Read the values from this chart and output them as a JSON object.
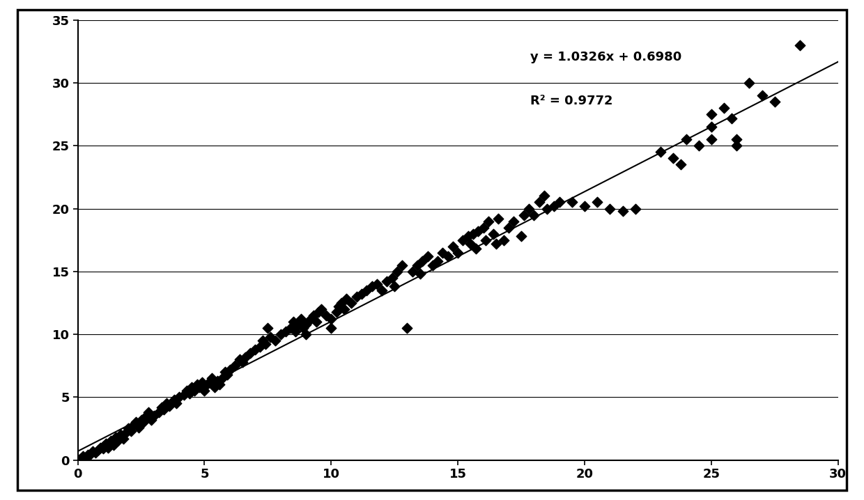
{
  "equation": "y = 1.0326x + 0.6980",
  "r_squared": "R² = 0.9772",
  "slope": 1.0326,
  "intercept": 0.698,
  "xlim": [
    0,
    30
  ],
  "ylim": [
    0,
    35
  ],
  "xticks": [
    0,
    5,
    10,
    15,
    20,
    25,
    30
  ],
  "yticks": [
    0,
    5,
    10,
    15,
    20,
    25,
    30,
    35
  ],
  "marker_color": "black",
  "line_color": "black",
  "background_color": "white",
  "annotation_fontsize": 13,
  "tick_fontsize": 13,
  "scatter_points": [
    [
      0.05,
      0.0
    ],
    [
      0.1,
      0.1
    ],
    [
      0.2,
      0.3
    ],
    [
      0.3,
      0.2
    ],
    [
      0.4,
      0.4
    ],
    [
      0.5,
      0.5
    ],
    [
      0.6,
      0.7
    ],
    [
      0.7,
      0.6
    ],
    [
      0.8,
      0.8
    ],
    [
      0.9,
      1.0
    ],
    [
      1.0,
      0.9
    ],
    [
      1.0,
      1.1
    ],
    [
      1.1,
      1.3
    ],
    [
      1.2,
      1.0
    ],
    [
      1.3,
      1.5
    ],
    [
      1.4,
      1.2
    ],
    [
      1.5,
      1.8
    ],
    [
      1.6,
      1.6
    ],
    [
      1.7,
      2.0
    ],
    [
      1.8,
      1.7
    ],
    [
      1.9,
      2.2
    ],
    [
      2.0,
      2.5
    ],
    [
      2.1,
      2.3
    ],
    [
      2.2,
      2.8
    ],
    [
      2.3,
      3.0
    ],
    [
      2.4,
      2.6
    ],
    [
      2.5,
      3.2
    ],
    [
      2.6,
      3.0
    ],
    [
      2.7,
      3.5
    ],
    [
      2.8,
      3.8
    ],
    [
      2.9,
      3.2
    ],
    [
      3.0,
      3.5
    ],
    [
      3.2,
      3.8
    ],
    [
      3.3,
      4.2
    ],
    [
      3.4,
      4.0
    ],
    [
      3.5,
      4.5
    ],
    [
      3.6,
      4.3
    ],
    [
      3.8,
      4.8
    ],
    [
      3.9,
      4.5
    ],
    [
      4.0,
      5.0
    ],
    [
      4.2,
      5.2
    ],
    [
      4.3,
      5.5
    ],
    [
      4.4,
      5.3
    ],
    [
      4.5,
      5.8
    ],
    [
      4.6,
      5.5
    ],
    [
      4.7,
      6.0
    ],
    [
      4.8,
      5.8
    ],
    [
      4.9,
      6.2
    ],
    [
      5.0,
      5.5
    ],
    [
      5.1,
      6.0
    ],
    [
      5.2,
      6.2
    ],
    [
      5.3,
      6.5
    ],
    [
      5.4,
      5.8
    ],
    [
      5.5,
      6.3
    ],
    [
      5.6,
      6.0
    ],
    [
      5.7,
      6.5
    ],
    [
      5.8,
      7.0
    ],
    [
      5.9,
      6.8
    ],
    [
      6.0,
      7.2
    ],
    [
      6.2,
      7.5
    ],
    [
      6.4,
      8.0
    ],
    [
      6.5,
      7.8
    ],
    [
      6.6,
      8.2
    ],
    [
      6.8,
      8.5
    ],
    [
      7.0,
      8.8
    ],
    [
      7.2,
      9.0
    ],
    [
      7.3,
      9.5
    ],
    [
      7.4,
      9.2
    ],
    [
      7.5,
      10.5
    ],
    [
      7.6,
      9.8
    ],
    [
      7.8,
      9.5
    ],
    [
      8.0,
      10.0
    ],
    [
      8.2,
      10.2
    ],
    [
      8.4,
      10.5
    ],
    [
      8.5,
      11.0
    ],
    [
      8.6,
      10.2
    ],
    [
      8.7,
      10.8
    ],
    [
      8.8,
      11.2
    ],
    [
      8.9,
      10.5
    ],
    [
      9.0,
      10.0
    ],
    [
      9.0,
      10.8
    ],
    [
      9.2,
      11.2
    ],
    [
      9.3,
      11.5
    ],
    [
      9.4,
      11.0
    ],
    [
      9.5,
      11.8
    ],
    [
      9.6,
      12.0
    ],
    [
      9.8,
      11.5
    ],
    [
      10.0,
      10.5
    ],
    [
      10.0,
      11.2
    ],
    [
      10.2,
      11.8
    ],
    [
      10.3,
      12.2
    ],
    [
      10.4,
      12.5
    ],
    [
      10.5,
      12.0
    ],
    [
      10.6,
      12.8
    ],
    [
      10.8,
      12.5
    ],
    [
      11.0,
      13.0
    ],
    [
      11.2,
      13.2
    ],
    [
      11.4,
      13.5
    ],
    [
      11.6,
      13.8
    ],
    [
      11.8,
      14.0
    ],
    [
      12.0,
      13.5
    ],
    [
      12.2,
      14.2
    ],
    [
      12.4,
      14.5
    ],
    [
      12.5,
      13.8
    ],
    [
      12.6,
      15.0
    ],
    [
      12.8,
      15.5
    ],
    [
      13.0,
      10.5
    ],
    [
      13.2,
      15.0
    ],
    [
      13.4,
      15.5
    ],
    [
      13.5,
      14.8
    ],
    [
      13.6,
      15.8
    ],
    [
      13.8,
      16.2
    ],
    [
      14.0,
      15.5
    ],
    [
      14.2,
      15.8
    ],
    [
      14.4,
      16.5
    ],
    [
      14.6,
      16.2
    ],
    [
      14.8,
      17.0
    ],
    [
      15.0,
      16.5
    ],
    [
      15.2,
      17.5
    ],
    [
      15.4,
      17.8
    ],
    [
      15.5,
      17.2
    ],
    [
      15.6,
      18.0
    ],
    [
      15.7,
      16.8
    ],
    [
      15.8,
      18.2
    ],
    [
      16.0,
      18.5
    ],
    [
      16.1,
      17.5
    ],
    [
      16.2,
      19.0
    ],
    [
      16.4,
      18.0
    ],
    [
      16.5,
      17.2
    ],
    [
      16.6,
      19.2
    ],
    [
      16.8,
      17.5
    ],
    [
      17.0,
      18.5
    ],
    [
      17.2,
      19.0
    ],
    [
      17.5,
      17.8
    ],
    [
      17.6,
      19.5
    ],
    [
      17.8,
      20.0
    ],
    [
      18.0,
      19.5
    ],
    [
      18.2,
      20.5
    ],
    [
      18.4,
      21.0
    ],
    [
      18.5,
      20.0
    ],
    [
      18.8,
      20.2
    ],
    [
      19.0,
      20.5
    ],
    [
      19.5,
      20.5
    ],
    [
      20.0,
      20.2
    ],
    [
      20.5,
      20.5
    ],
    [
      21.0,
      20.0
    ],
    [
      21.5,
      19.8
    ],
    [
      22.0,
      20.0
    ],
    [
      23.0,
      24.5
    ],
    [
      23.5,
      24.0
    ],
    [
      23.8,
      23.5
    ],
    [
      24.0,
      25.5
    ],
    [
      24.5,
      25.0
    ],
    [
      25.0,
      26.5
    ],
    [
      25.0,
      25.5
    ],
    [
      25.0,
      27.5
    ],
    [
      25.5,
      28.0
    ],
    [
      25.8,
      27.2
    ],
    [
      26.0,
      25.5
    ],
    [
      26.0,
      25.0
    ],
    [
      26.5,
      30.0
    ],
    [
      27.0,
      29.0
    ],
    [
      27.5,
      28.5
    ],
    [
      28.5,
      33.0
    ]
  ]
}
